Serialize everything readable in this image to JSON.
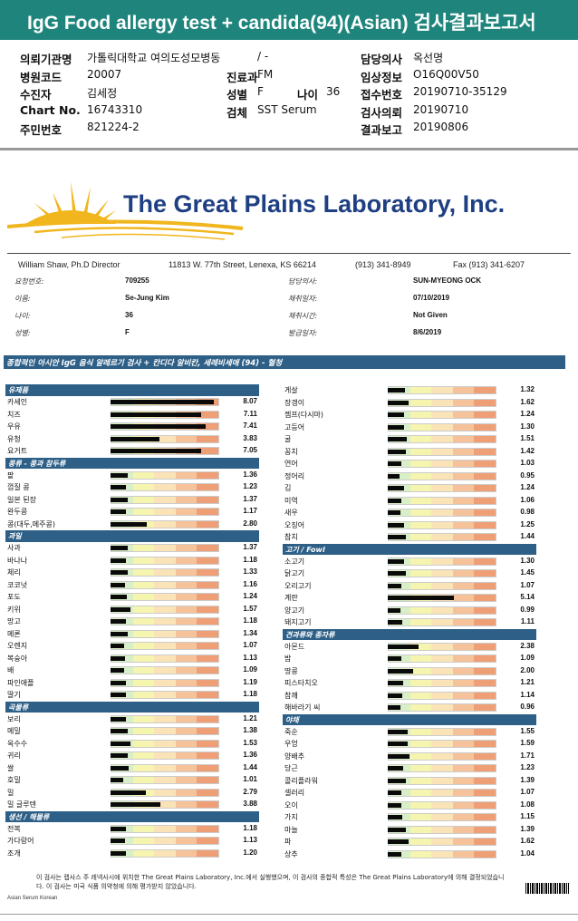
{
  "header": {
    "title": "IgG Food allergy test + candida(94)(Asian) 검사결과보고서"
  },
  "korean_info": {
    "rows": [
      {
        "l1": "의뢰기관명",
        "v1": "가톨릭대학교 여의도성모병동",
        "l2": "",
        "v2": "/ -",
        "l3": "담당의사",
        "v3": "옥선명"
      },
      {
        "l1": "병원코드",
        "v1": "20007",
        "l2": "진료과",
        "v2": "FM",
        "l3": "임상정보",
        "v3": "O16Q00V50"
      },
      {
        "l1": "수진자",
        "v1": "김세정",
        "l2": "성별",
        "v2": "F",
        "l3": "접수번호",
        "v3": "20190710-35129"
      },
      {
        "l1": "Chart No.",
        "v1": "16743310",
        "l2": "검체",
        "v2": "SST Serum",
        "l3": "검사의뢰",
        "v3": "20190710"
      },
      {
        "l1": "주민번호",
        "v1": "821224-2",
        "l2": "",
        "v2": "",
        "l3": "결과보고",
        "v3": "20190806"
      }
    ],
    "age_label": "나이",
    "age_value": "36"
  },
  "lab": {
    "name": "The Great Plains Laboratory, Inc.",
    "director": "William Shaw, Ph.D  Director",
    "address": "11813 W. 77th Street, Lenexa, KS 66214",
    "phone": "(913) 341-8949",
    "fax": "Fax (913) 341-6207"
  },
  "patient": {
    "left": [
      {
        "label": "요청번호:",
        "value": "709255"
      },
      {
        "label": "이름:",
        "value": "Se-Jung Kim"
      },
      {
        "label": "나이:",
        "value": "36"
      },
      {
        "label": "성별:",
        "value": "F"
      }
    ],
    "right": [
      {
        "label": "담당의사:",
        "value": "SUN-MYEONG  OCK"
      },
      {
        "label": "채취일자:",
        "value": "07/10/2019"
      },
      {
        "label": "채취시간:",
        "value": "Not Given"
      },
      {
        "label": "발급일자:",
        "value": "8/6/2019"
      }
    ]
  },
  "section_title": "종합적인 아시안 IgG 음식 알레르기 검사 + 칸디다 알비칸, 세레비세애 (94) - 혈청",
  "chart_data": {
    "type": "bar",
    "scale_max": 8.5,
    "band_colors": [
      "#d8efc7",
      "#f6f5b0",
      "#fbe3b8",
      "#f6c29a",
      "#ef9f76"
    ],
    "left_column": [
      {
        "category": "유제품",
        "items": [
          {
            "name": "카세인",
            "value": 8.07
          },
          {
            "name": "치즈",
            "value": 7.11
          },
          {
            "name": "우유",
            "value": 7.41
          },
          {
            "name": "유청",
            "value": 3.83
          },
          {
            "name": "요거트",
            "value": 7.05
          }
        ]
      },
      {
        "category": "콩류 - 콩과 참두류",
        "items": [
          {
            "name": "팥",
            "value": 1.36
          },
          {
            "name": "껍질 콩",
            "value": 1.23
          },
          {
            "name": "일본 된장",
            "value": 1.37
          },
          {
            "name": "완두콩",
            "value": 1.17
          },
          {
            "name": "콩(대두,메주콩)",
            "value": 2.8
          }
        ]
      },
      {
        "category": "과일",
        "items": [
          {
            "name": "사과",
            "value": 1.37
          },
          {
            "name": "바나나",
            "value": 1.18
          },
          {
            "name": "체리",
            "value": 1.33
          },
          {
            "name": "코코넛",
            "value": 1.16
          },
          {
            "name": "포도",
            "value": 1.24
          },
          {
            "name": "키위",
            "value": 1.57
          },
          {
            "name": "망고",
            "value": 1.18
          },
          {
            "name": "메론",
            "value": 1.34
          },
          {
            "name": "오렌지",
            "value": 1.07
          },
          {
            "name": "복숭아",
            "value": 1.13
          },
          {
            "name": "배",
            "value": 1.09
          },
          {
            "name": "파인애플",
            "value": 1.19
          },
          {
            "name": "딸기",
            "value": 1.18
          }
        ]
      },
      {
        "category": "곡물류",
        "items": [
          {
            "name": "보리",
            "value": 1.21
          },
          {
            "name": "메밀",
            "value": 1.38
          },
          {
            "name": "옥수수",
            "value": 1.53
          },
          {
            "name": "귀리",
            "value": 1.36
          },
          {
            "name": "쌀",
            "value": 1.44
          },
          {
            "name": "호밀",
            "value": 1.01
          },
          {
            "name": "밀",
            "value": 2.79
          },
          {
            "name": "밀 글루텐",
            "value": 3.88
          }
        ]
      },
      {
        "category": "생선 / 해물류",
        "items": [
          {
            "name": "전복",
            "value": 1.18
          },
          {
            "name": "가다랑어",
            "value": 1.13
          },
          {
            "name": "조개",
            "value": 1.2
          }
        ]
      }
    ],
    "right_column": [
      {
        "category": "",
        "items": [
          {
            "name": "게살",
            "value": 1.32
          },
          {
            "name": "장갱이",
            "value": 1.62
          },
          {
            "name": "젬프(다시마)",
            "value": 1.24
          },
          {
            "name": "고등어",
            "value": 1.3
          },
          {
            "name": "굴",
            "value": 1.51
          },
          {
            "name": "꽁치",
            "value": 1.42
          },
          {
            "name": "연어",
            "value": 1.03
          },
          {
            "name": "정어리",
            "value": 0.95
          },
          {
            "name": "김",
            "value": 1.24
          },
          {
            "name": "미역",
            "value": 1.06
          },
          {
            "name": "새우",
            "value": 0.98
          },
          {
            "name": "오징어",
            "value": 1.25
          },
          {
            "name": "참치",
            "value": 1.44
          }
        ]
      },
      {
        "category": "고기 / Fowl",
        "items": [
          {
            "name": "소고기",
            "value": 1.3
          },
          {
            "name": "닭고기",
            "value": 1.45
          },
          {
            "name": "오리고기",
            "value": 1.07
          },
          {
            "name": "계란",
            "value": 5.14
          },
          {
            "name": "양고기",
            "value": 0.99
          },
          {
            "name": "돼지고기",
            "value": 1.11
          }
        ]
      },
      {
        "category": "견과류와 종자류",
        "items": [
          {
            "name": "아몬드",
            "value": 2.38
          },
          {
            "name": "밤",
            "value": 1.09
          },
          {
            "name": "땅콩",
            "value": 2.0
          },
          {
            "name": "피스타치오",
            "value": 1.21
          },
          {
            "name": "참깨",
            "value": 1.14
          },
          {
            "name": "해바라기 씨",
            "value": 0.96
          }
        ]
      },
      {
        "category": "야채",
        "items": [
          {
            "name": "죽순",
            "value": 1.55
          },
          {
            "name": "우엉",
            "value": 1.59
          },
          {
            "name": "양배추",
            "value": 1.71
          },
          {
            "name": "당근",
            "value": 1.23
          },
          {
            "name": "콜리플라워",
            "value": 1.39
          },
          {
            "name": "셀러리",
            "value": 1.07
          },
          {
            "name": "오이",
            "value": 1.08
          },
          {
            "name": "가지",
            "value": 1.15
          },
          {
            "name": "마늘",
            "value": 1.39
          },
          {
            "name": "파",
            "value": 1.62
          },
          {
            "name": "상추",
            "value": 1.04
          }
        ]
      }
    ]
  },
  "footnote": "이 검사는 랩사스 주 레넥사시에 위치한 The Great Plains Laboratory, Inc.에서 실행했으며, 이 검사의 종합적 특성은 The Great Plains Laboratory에 의해 결정되었습니다. 이 검사는 미국 식품 의약청에 의해 평가받지 않았습니다.",
  "footer_left": "Asian Serum Korean"
}
